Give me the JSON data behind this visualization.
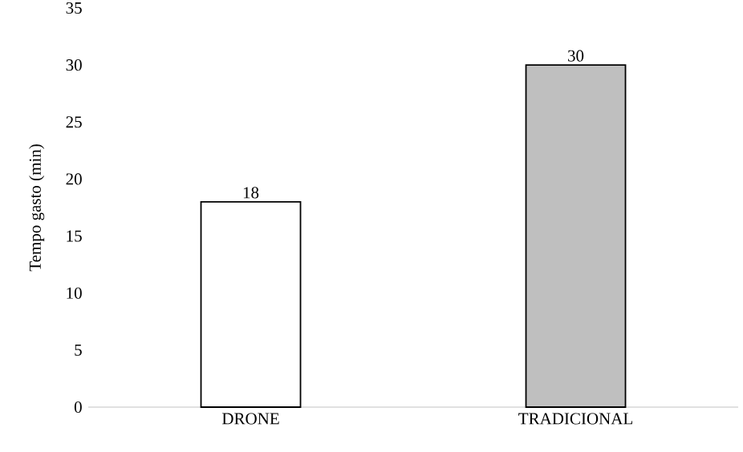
{
  "chart_data": {
    "type": "bar",
    "ylabel": "Tempo gasto (min)",
    "categories": [
      "DRONE",
      "TRADICIONAL"
    ],
    "values": [
      18,
      30
    ],
    "colors": [
      "#ffffff",
      "#bfbfbf"
    ],
    "ylim": [
      0,
      35
    ],
    "yticks": [
      0,
      5,
      10,
      15,
      20,
      25,
      30,
      35
    ],
    "data_labels": true,
    "grid": false
  }
}
